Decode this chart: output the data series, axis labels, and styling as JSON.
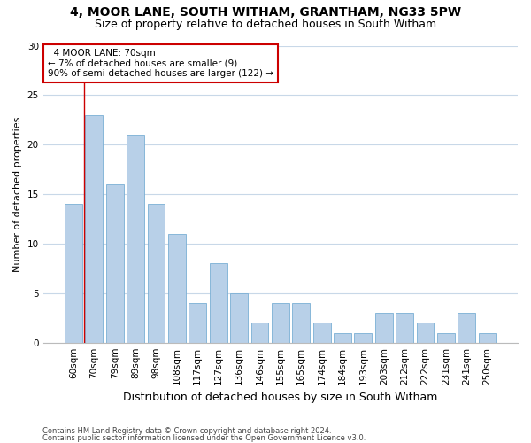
{
  "title1": "4, MOOR LANE, SOUTH WITHAM, GRANTHAM, NG33 5PW",
  "title2": "Size of property relative to detached houses in South Witham",
  "xlabel": "Distribution of detached houses by size in South Witham",
  "ylabel": "Number of detached properties",
  "categories": [
    "60sqm",
    "70sqm",
    "79sqm",
    "89sqm",
    "98sqm",
    "108sqm",
    "117sqm",
    "127sqm",
    "136sqm",
    "146sqm",
    "155sqm",
    "165sqm",
    "174sqm",
    "184sqm",
    "193sqm",
    "203sqm",
    "212sqm",
    "222sqm",
    "231sqm",
    "241sqm",
    "250sqm"
  ],
  "values": [
    14,
    23,
    16,
    21,
    14,
    11,
    4,
    8,
    5,
    2,
    4,
    4,
    2,
    1,
    1,
    3,
    3,
    2,
    1,
    3,
    1
  ],
  "bar_color": "#b8d0e8",
  "bar_edge_color": "#7aafd4",
  "highlight_index": 1,
  "highlight_line_color": "#cc0000",
  "ylim": [
    0,
    30
  ],
  "yticks": [
    0,
    5,
    10,
    15,
    20,
    25,
    30
  ],
  "annotation_text": "  4 MOOR LANE: 70sqm\n← 7% of detached houses are smaller (9)\n90% of semi-detached houses are larger (122) →",
  "annotation_box_color": "#ffffff",
  "annotation_box_edgecolor": "#cc0000",
  "footer1": "Contains HM Land Registry data © Crown copyright and database right 2024.",
  "footer2": "Contains public sector information licensed under the Open Government Licence v3.0.",
  "bg_color": "#ffffff",
  "grid_color": "#c8d8e8",
  "title_fontsize": 10,
  "subtitle_fontsize": 9,
  "ylabel_fontsize": 8,
  "xlabel_fontsize": 9,
  "tick_fontsize": 7.5,
  "footer_fontsize": 6,
  "annotation_fontsize": 7.5,
  "bar_width": 0.85
}
